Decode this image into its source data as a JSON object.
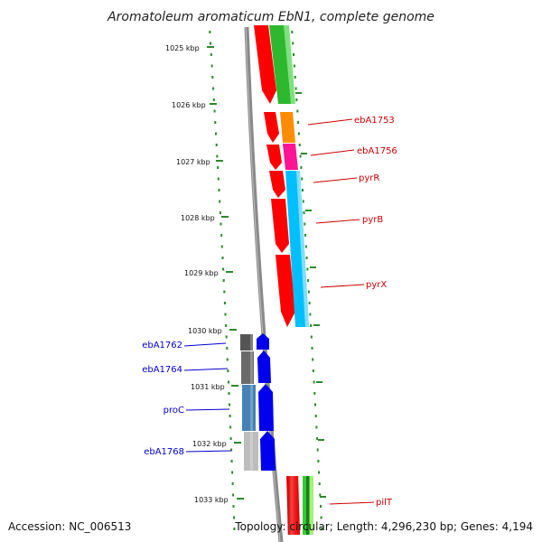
{
  "title": "Aromatoleum aromaticum EbN1, complete genome",
  "footer": {
    "accession": "Accession: NC_006513",
    "topology": "Topology: circular; Length: 4,296,230 bp; Genes: 4,194"
  },
  "colors": {
    "backbone": "#888888",
    "tick_green": "#2a8a2a",
    "label_red": "#cc0000",
    "label_blue": "#0000cc"
  },
  "kbp_labels": [
    "1025 kbp",
    "1026 kbp",
    "1027 kbp",
    "1028 kbp",
    "1029 kbp",
    "1030 kbp",
    "1031 kbp",
    "1032 kbp",
    "1033 kbp"
  ],
  "forward_genes": [
    {
      "name": "",
      "color": "#ff0000"
    },
    {
      "name": "",
      "color": "#ff0000"
    },
    {
      "name": "",
      "color": "#ff0000"
    },
    {
      "name": "",
      "color": "#ff0000"
    },
    {
      "name": "",
      "color": "#ff0000"
    },
    {
      "name": "",
      "color": "#ff0000"
    },
    {
      "name": "",
      "color": "#ff0000"
    }
  ],
  "forward_labels": [
    {
      "name": "ebA1753",
      "color": "#ff8c00"
    },
    {
      "name": "ebA1756",
      "color": "#ff1493"
    },
    {
      "name": "pyrR",
      "color": "#00bfff"
    },
    {
      "name": "pyrB",
      "color": "#00bfff"
    },
    {
      "name": "pyrX",
      "color": "#00bfff"
    },
    {
      "name": "pilT",
      "color": "#33cc33"
    }
  ],
  "reverse_genes": [
    {
      "name": "ebA1762",
      "color": "#666666"
    },
    {
      "name": "ebA1764",
      "color": "#666666"
    },
    {
      "name": "proC",
      "color": "#4682b4"
    },
    {
      "name": "ebA1768",
      "color": "#bbbbbb"
    }
  ]
}
